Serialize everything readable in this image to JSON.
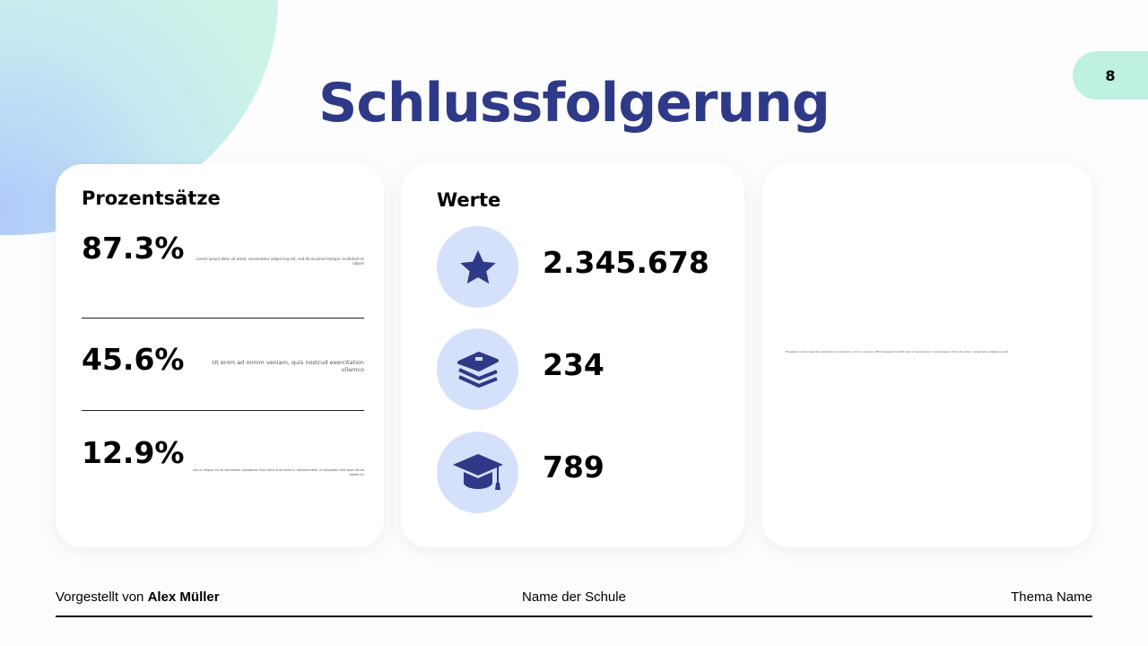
{
  "page_number": "8",
  "title": "Schlussfolgerung",
  "percentages": {
    "heading": "Prozentsätze",
    "items": [
      {
        "value": "87.3%",
        "text": "Lorem ipsum dolor sit amet, consectetur adipiscing elit, sed do eiusmod tempor incididunt ut labore"
      },
      {
        "value": "45.6%",
        "text": "Ut enim ad minim veniam, quis nostrud exercitation ullamco"
      },
      {
        "value": "12.9%",
        "text": "nisi ut aliquip ex ea commodo consequat. Duis aute irure dolor in reprehenderit in voluptate velit esse cillum dolore eu"
      }
    ]
  },
  "values": {
    "heading": "Werte",
    "items": [
      {
        "icon": "star-icon",
        "value": "2.345.678"
      },
      {
        "icon": "books-icon",
        "value": "234"
      },
      {
        "icon": "graduation-cap-icon",
        "value": "789"
      }
    ]
  },
  "right_panel": {
    "text": "Excepteur sint occaecat cupidatat non proident, sunt in culpa qui officia deserunt mollit anim id est laborum. Lorem ipsum dolor sit amet, consectetur adipiscing elit."
  },
  "footer": {
    "presented_prefix": "Vorgestellt von ",
    "presenter": "Alex Müller",
    "school": "Name der Schule",
    "topic": "Thema Name"
  },
  "colors": {
    "title": "#2e3a87",
    "icon": "#2e3a87",
    "circle": "#d5e0fb",
    "page_tab": "#bff1e3"
  }
}
